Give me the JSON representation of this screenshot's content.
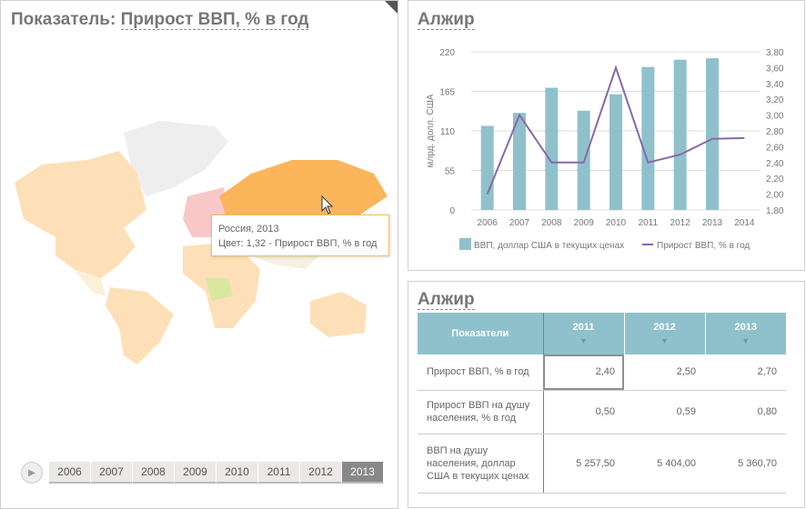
{
  "left": {
    "title_prefix": "Показатель:",
    "title_indicator": "Прирост ВВП, % в год",
    "tooltip": {
      "line1": "Россия, 2013",
      "line2": "Цвет: 1,32 - Прирост ВВП, % в год"
    },
    "timeline": {
      "years": [
        "2006",
        "2007",
        "2008",
        "2009",
        "2010",
        "2011",
        "2012",
        "2013"
      ],
      "selected": "2013"
    }
  },
  "chart_panel": {
    "title": "Алжир"
  },
  "chart_data": {
    "type": "bar+line",
    "categories": [
      "2006",
      "2007",
      "2008",
      "2009",
      "2010",
      "2011",
      "2012",
      "2013",
      "2014"
    ],
    "series": [
      {
        "name": "ВВП, доллар США в текущих ценах",
        "type": "bar",
        "axis": "left",
        "values": [
          117,
          135,
          170,
          138,
          161,
          199,
          209,
          211,
          null
        ]
      },
      {
        "name": "Прирост ВВП, % в год",
        "type": "line",
        "axis": "right",
        "values": [
          2.0,
          3.0,
          2.4,
          2.4,
          3.6,
          2.4,
          2.5,
          2.7,
          2.71
        ]
      }
    ],
    "ylabel": "млрд. долл. США",
    "ylim": [
      0,
      220
    ],
    "yticks": [
      "0",
      "55",
      "110",
      "165",
      "220"
    ],
    "y2lim": [
      1.8,
      3.8
    ],
    "y2ticks": [
      "1,80",
      "2,00",
      "2,20",
      "2,40",
      "2,60",
      "2,80",
      "3,00",
      "3,20",
      "3,40",
      "3,60",
      "3,80"
    ],
    "colors": {
      "bar": "#8fc1cc",
      "line": "#8a68a8"
    },
    "legend": "bottom",
    "grid": true
  },
  "table_panel": {
    "title": "Алжир",
    "header": [
      "Показатели",
      "2011",
      "2012",
      "2013"
    ],
    "rows": [
      {
        "label": "Прирост ВВП, % в год",
        "values": [
          "2,40",
          "2,50",
          "2,70"
        ]
      },
      {
        "label": "Прирост ВВП на душу населения, % в год",
        "values": [
          "0,50",
          "0,59",
          "0,80"
        ]
      },
      {
        "label": "ВВП на душу населения, доллар США в текущих ценах",
        "values": [
          "5 257,50",
          "5 404,00",
          "5 360,70"
        ]
      }
    ]
  }
}
